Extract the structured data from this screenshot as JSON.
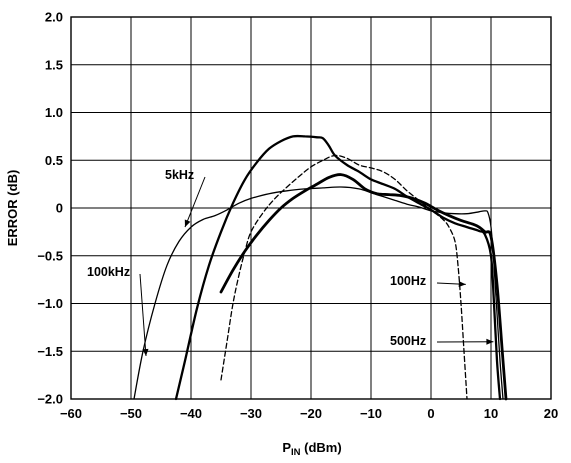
{
  "chart_data": {
    "type": "line",
    "xlabel_main": "P",
    "xlabel_sub": "IN",
    "xlabel_suffix": " (dBm)",
    "ylabel": "ERROR (dB)",
    "xlim": [
      -60,
      20
    ],
    "ylim": [
      -2.0,
      2.0
    ],
    "x_ticks": [
      "−60",
      "−50",
      "−40",
      "−30",
      "−20",
      "−10",
      "0",
      "10",
      "20"
    ],
    "y_ticks": [
      "2.0",
      "1.5",
      "1.0",
      "0.5",
      "0",
      "−0.5",
      "−1.0",
      "−1.5",
      "−2.0"
    ],
    "x_tick_values": [
      -60,
      -50,
      -40,
      -30,
      -20,
      -10,
      0,
      10,
      20
    ],
    "y_tick_values": [
      2.0,
      1.5,
      1.0,
      0.5,
      0,
      -0.5,
      -1.0,
      -1.5,
      -2.0
    ],
    "grid": true,
    "series": [
      {
        "name": "100kHz",
        "style": "thin",
        "x": [
          -49.5,
          -48,
          -46,
          -44,
          -42,
          -40,
          -38,
          -36,
          -34,
          -32,
          -30,
          -27,
          -24,
          -21,
          -18,
          -15,
          -12,
          -10,
          -8,
          -6,
          -4,
          -2,
          0,
          2,
          4,
          6,
          8,
          9,
          9.5,
          10,
          10.5,
          11,
          11.5,
          12
        ],
        "y": [
          -2.0,
          -1.5,
          -1.0,
          -0.6,
          -0.35,
          -0.2,
          -0.12,
          -0.08,
          -0.02,
          0.05,
          0.1,
          0.15,
          0.18,
          0.2,
          0.21,
          0.22,
          0.2,
          0.16,
          0.12,
          0.08,
          0.04,
          0.01,
          -0.03,
          -0.05,
          -0.06,
          -0.06,
          -0.04,
          -0.03,
          -0.05,
          -0.2,
          -0.6,
          -1.1,
          -1.6,
          -2.0
        ]
      },
      {
        "name": "5kHz",
        "style": "medium",
        "x": [
          -42.5,
          -41,
          -39,
          -37,
          -35,
          -33,
          -31,
          -29,
          -27,
          -25,
          -23,
          -21,
          -19,
          -18,
          -17,
          -16,
          -14,
          -12,
          -10,
          -8,
          -6,
          -4,
          -2,
          0,
          2,
          4,
          6,
          8,
          9,
          10,
          10.5,
          11,
          11.5
        ],
        "y": [
          -2.0,
          -1.6,
          -1.05,
          -0.6,
          -0.25,
          0.05,
          0.3,
          0.48,
          0.62,
          0.7,
          0.75,
          0.75,
          0.74,
          0.73,
          0.65,
          0.55,
          0.45,
          0.38,
          0.3,
          0.25,
          0.2,
          0.12,
          0.05,
          -0.02,
          -0.1,
          -0.16,
          -0.2,
          -0.24,
          -0.28,
          -0.5,
          -1.0,
          -1.6,
          -2.0
        ]
      },
      {
        "name": "500Hz",
        "style": "thick",
        "x": [
          -35,
          -33,
          -31,
          -29,
          -27,
          -25,
          -23,
          -21,
          -19,
          -17,
          -15,
          -13,
          -11,
          -9,
          -7,
          -5,
          -3,
          -1,
          1,
          3,
          5,
          7,
          8,
          9,
          10,
          11,
          12,
          12.5
        ],
        "y": [
          -0.88,
          -0.65,
          -0.45,
          -0.28,
          -0.13,
          0.0,
          0.1,
          0.18,
          0.25,
          0.32,
          0.35,
          0.3,
          0.2,
          0.15,
          0.14,
          0.13,
          0.1,
          0.05,
          -0.02,
          -0.08,
          -0.13,
          -0.17,
          -0.2,
          -0.25,
          -0.3,
          -0.8,
          -1.6,
          -2.0
        ]
      },
      {
        "name": "100Hz",
        "style": "dashed",
        "x": [
          -35,
          -34,
          -33,
          -32,
          -31,
          -30,
          -28,
          -26,
          -24,
          -22,
          -20,
          -18,
          -16,
          -14,
          -12,
          -10,
          -8,
          -6,
          -4,
          -2,
          0,
          2,
          3,
          4,
          4.5,
          5,
          5.5,
          6
        ],
        "y": [
          -1.8,
          -1.4,
          -1.0,
          -0.7,
          -0.45,
          -0.25,
          -0.05,
          0.1,
          0.22,
          0.33,
          0.43,
          0.5,
          0.55,
          0.52,
          0.45,
          0.42,
          0.38,
          0.3,
          0.18,
          0.08,
          -0.02,
          -0.12,
          -0.2,
          -0.35,
          -0.6,
          -1.0,
          -1.5,
          -2.0
        ]
      }
    ],
    "annotations": [
      {
        "label": "5kHz",
        "series": "5kHz"
      },
      {
        "label": "100kHz",
        "series": "100kHz"
      },
      {
        "label": "100Hz",
        "series": "100Hz"
      },
      {
        "label": "500Hz",
        "series": "500Hz"
      }
    ]
  }
}
